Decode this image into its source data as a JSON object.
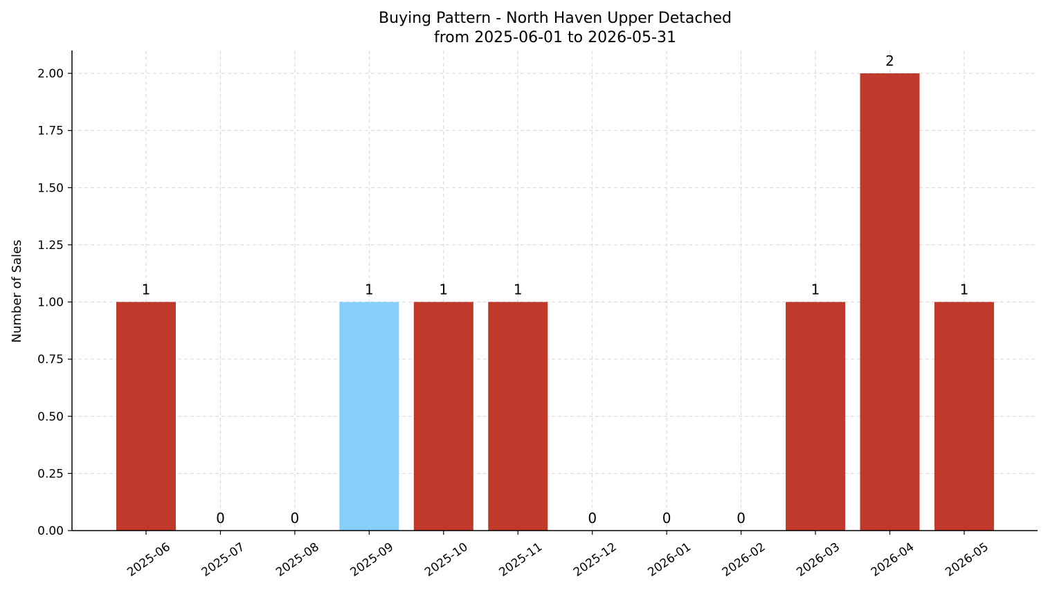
{
  "chart_data": {
    "type": "bar",
    "title": "Buying Pattern - North Haven Upper Detached",
    "subtitle": "from 2025-06-01 to 2026-05-31",
    "xlabel": "",
    "ylabel": "Number of Sales",
    "ylim": [
      0,
      2.1
    ],
    "yticks": [
      "0.00",
      "0.25",
      "0.50",
      "0.75",
      "1.00",
      "1.25",
      "1.50",
      "1.75",
      "2.00"
    ],
    "ytick_values": [
      0,
      0.25,
      0.5,
      0.75,
      1.0,
      1.25,
      1.5,
      1.75,
      2.0
    ],
    "categories": [
      "2025-06",
      "2025-07",
      "2025-08",
      "2025-09",
      "2025-10",
      "2025-11",
      "2025-12",
      "2026-01",
      "2026-02",
      "2026-03",
      "2026-04",
      "2026-05"
    ],
    "values": [
      1,
      0,
      0,
      1,
      1,
      1,
      0,
      0,
      0,
      1,
      2,
      1
    ],
    "highlight_index": 3,
    "bar_color": "#c0392b",
    "highlight_color": "#87cefa",
    "grid": true,
    "legend": "none"
  }
}
